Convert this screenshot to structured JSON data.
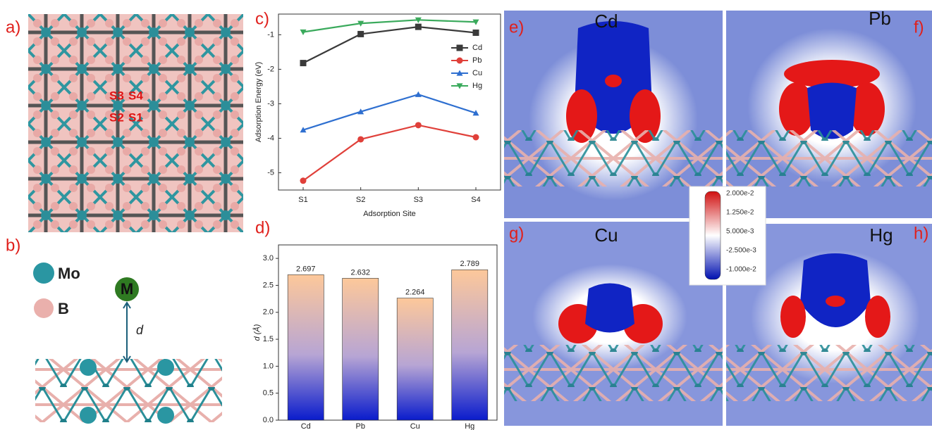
{
  "panel_labels": [
    "a)",
    "b)",
    "c)",
    "d)",
    "e)",
    "f)",
    "g)",
    "h)"
  ],
  "lattice_sites": [
    "S3",
    "S4",
    "S2",
    "S1"
  ],
  "atoms": [
    "Mo",
    "B"
  ],
  "adsorbate": "M",
  "distance": "d",
  "maps": [
    "Cd",
    "Pb",
    "Cu",
    "Hg"
  ],
  "colorbar": [
    "2.000e-2",
    "1.250e-2",
    "5.000e-3",
    "-2.500e-3",
    "-1.000e-2"
  ],
  "chart_data": [
    {
      "type": "line",
      "x_label": "Adsorption Site",
      "y_label": "Adsorption Energy (eV)",
      "categories": [
        "S1",
        "S2",
        "S3",
        "S4"
      ],
      "series": [
        {
          "name": "Cd",
          "color": "#3a3a3a",
          "marker": "square",
          "values": [
            -1.82,
            -0.98,
            -0.77,
            -0.94
          ]
        },
        {
          "name": "Pb",
          "color": "#e0403a",
          "marker": "circle",
          "values": [
            -5.23,
            -4.03,
            -3.62,
            -3.97
          ]
        },
        {
          "name": "Cu",
          "color": "#2e6fd0",
          "marker": "triangle-up",
          "values": [
            -3.76,
            -3.23,
            -2.73,
            -3.27
          ]
        },
        {
          "name": "Hg",
          "color": "#3aaa5c",
          "marker": "triangle-down",
          "values": [
            -0.92,
            -0.67,
            -0.57,
            -0.63
          ]
        }
      ],
      "ylim": [
        -5.5,
        -0.4
      ],
      "yticks": [
        -5,
        -4,
        -3,
        -2,
        -1
      ],
      "legend": "upper right"
    },
    {
      "type": "bar",
      "y_label": "d (Å)",
      "categories": [
        "Cd",
        "Pb",
        "Cu",
        "Hg"
      ],
      "values": [
        2.697,
        2.632,
        2.264,
        2.789
      ],
      "gradient": [
        "#fdc89a",
        "#b7a5d4",
        "#0a1ccc"
      ],
      "ylim": [
        0,
        3.25
      ],
      "yticks": [
        {
          "value": 0,
          "label": "0.0"
        },
        {
          "value": 0.5,
          "label": "0.5"
        },
        {
          "value": 1,
          "label": "1.0"
        },
        {
          "value": 1.5,
          "label": "1.5"
        },
        {
          "value": 2,
          "label": "2.0"
        },
        {
          "value": 2.5,
          "label": "2.5"
        },
        {
          "value": 3,
          "label": "3.0"
        }
      ]
    }
  ]
}
